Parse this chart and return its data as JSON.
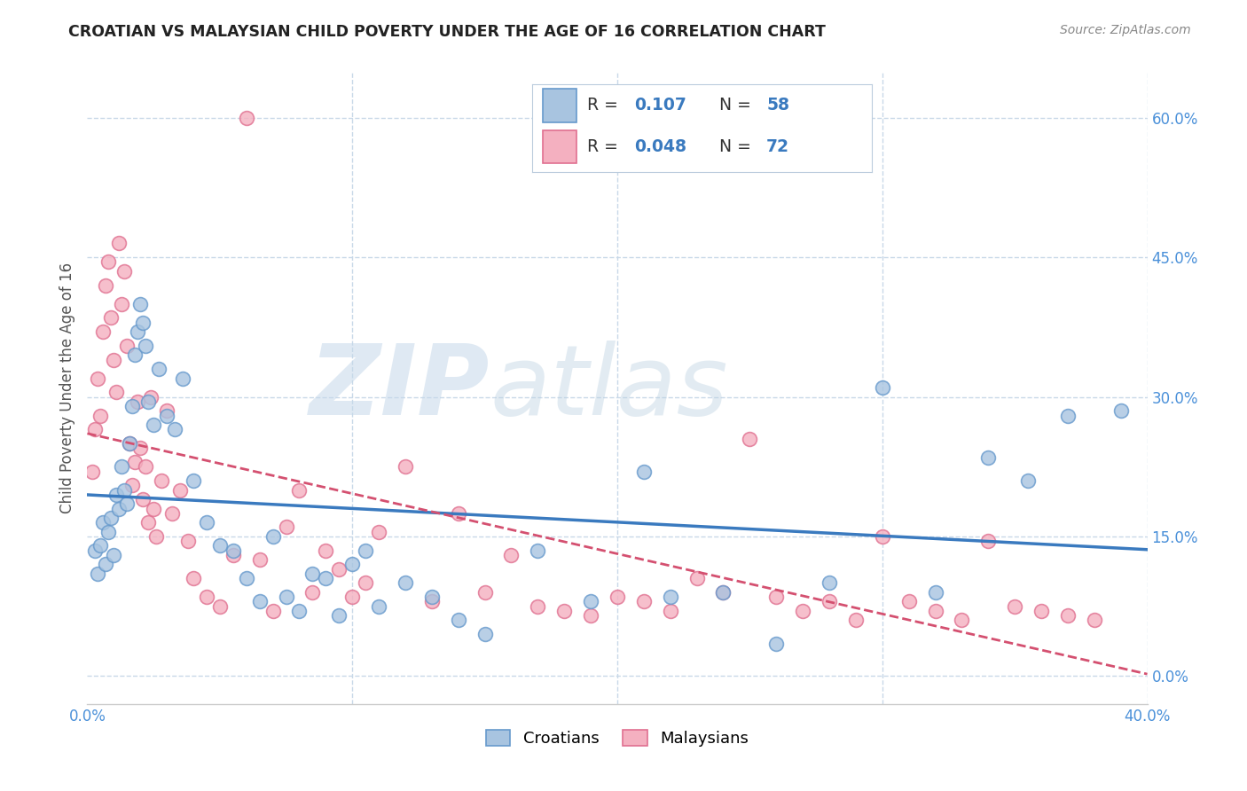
{
  "title": "CROATIAN VS MALAYSIAN CHILD POVERTY UNDER THE AGE OF 16 CORRELATION CHART",
  "source": "Source: ZipAtlas.com",
  "ylabel": "Child Poverty Under the Age of 16",
  "yticks": [
    "0.0%",
    "15.0%",
    "30.0%",
    "45.0%",
    "60.0%"
  ],
  "ytick_vals": [
    0.0,
    15.0,
    30.0,
    45.0,
    60.0
  ],
  "xmin": 0.0,
  "xmax": 40.0,
  "ymin": -3.0,
  "ymax": 65.0,
  "croatian_color": "#a8c4e0",
  "croatian_edge": "#6699cc",
  "malaysian_color": "#f4b0c0",
  "malaysian_edge": "#e07090",
  "legend_label_croatian": "Croatians",
  "legend_label_malaysian": "Malaysians",
  "R_croatian": "0.107",
  "N_croatian": "58",
  "R_malaysian": "0.048",
  "N_malaysian": "72",
  "croatian_x": [
    0.3,
    0.4,
    0.5,
    0.6,
    0.7,
    0.8,
    0.9,
    1.0,
    1.1,
    1.2,
    1.3,
    1.4,
    1.5,
    1.6,
    1.7,
    1.8,
    1.9,
    2.0,
    2.1,
    2.2,
    2.3,
    2.5,
    2.7,
    3.0,
    3.3,
    3.6,
    4.0,
    4.5,
    5.0,
    5.5,
    6.0,
    6.5,
    7.0,
    7.5,
    8.0,
    8.5,
    9.0,
    9.5,
    10.0,
    10.5,
    11.0,
    12.0,
    13.0,
    14.0,
    15.0,
    17.0,
    19.0,
    21.0,
    22.0,
    24.0,
    26.0,
    28.0,
    30.0,
    32.0,
    34.0,
    35.5,
    37.0,
    39.0
  ],
  "croatian_y": [
    13.5,
    11.0,
    14.0,
    16.5,
    12.0,
    15.5,
    17.0,
    13.0,
    19.5,
    18.0,
    22.5,
    20.0,
    18.5,
    25.0,
    29.0,
    34.5,
    37.0,
    40.0,
    38.0,
    35.5,
    29.5,
    27.0,
    33.0,
    28.0,
    26.5,
    32.0,
    21.0,
    16.5,
    14.0,
    13.5,
    10.5,
    8.0,
    15.0,
    8.5,
    7.0,
    11.0,
    10.5,
    6.5,
    12.0,
    13.5,
    7.5,
    10.0,
    8.5,
    6.0,
    4.5,
    13.5,
    8.0,
    22.0,
    8.5,
    9.0,
    3.5,
    10.0,
    31.0,
    9.0,
    23.5,
    21.0,
    28.0,
    28.5
  ],
  "malaysian_x": [
    0.2,
    0.3,
    0.4,
    0.5,
    0.6,
    0.7,
    0.8,
    0.9,
    1.0,
    1.1,
    1.2,
    1.3,
    1.4,
    1.5,
    1.6,
    1.7,
    1.8,
    1.9,
    2.0,
    2.1,
    2.2,
    2.3,
    2.4,
    2.5,
    2.6,
    2.8,
    3.0,
    3.2,
    3.5,
    3.8,
    4.0,
    4.5,
    5.0,
    5.5,
    6.0,
    6.5,
    7.0,
    7.5,
    8.0,
    8.5,
    9.0,
    9.5,
    10.0,
    10.5,
    11.0,
    12.0,
    13.0,
    14.0,
    15.0,
    16.0,
    17.0,
    18.0,
    19.0,
    20.0,
    21.0,
    22.0,
    23.0,
    24.0,
    25.0,
    26.0,
    27.0,
    28.0,
    29.0,
    30.0,
    31.0,
    32.0,
    33.0,
    34.0,
    35.0,
    36.0,
    37.0,
    38.0
  ],
  "malaysian_y": [
    22.0,
    26.5,
    32.0,
    28.0,
    37.0,
    42.0,
    44.5,
    38.5,
    34.0,
    30.5,
    46.5,
    40.0,
    43.5,
    35.5,
    25.0,
    20.5,
    23.0,
    29.5,
    24.5,
    19.0,
    22.5,
    16.5,
    30.0,
    18.0,
    15.0,
    21.0,
    28.5,
    17.5,
    20.0,
    14.5,
    10.5,
    8.5,
    7.5,
    13.0,
    60.0,
    12.5,
    7.0,
    16.0,
    20.0,
    9.0,
    13.5,
    11.5,
    8.5,
    10.0,
    15.5,
    22.5,
    8.0,
    17.5,
    9.0,
    13.0,
    7.5,
    7.0,
    6.5,
    8.5,
    8.0,
    7.0,
    10.5,
    9.0,
    25.5,
    8.5,
    7.0,
    8.0,
    6.0,
    15.0,
    8.0,
    7.0,
    6.0,
    14.5,
    7.5,
    7.0,
    6.5,
    6.0
  ],
  "background_color": "#ffffff",
  "grid_color": "#c8d8e8",
  "trendline_croatian_color": "#3a7abf",
  "trendline_malaysian_color": "#d45070",
  "axis_label_color": "#4a90d9",
  "title_color": "#222222",
  "legend_text_color": "#333333",
  "legend_rn_color": "#3a7abf"
}
